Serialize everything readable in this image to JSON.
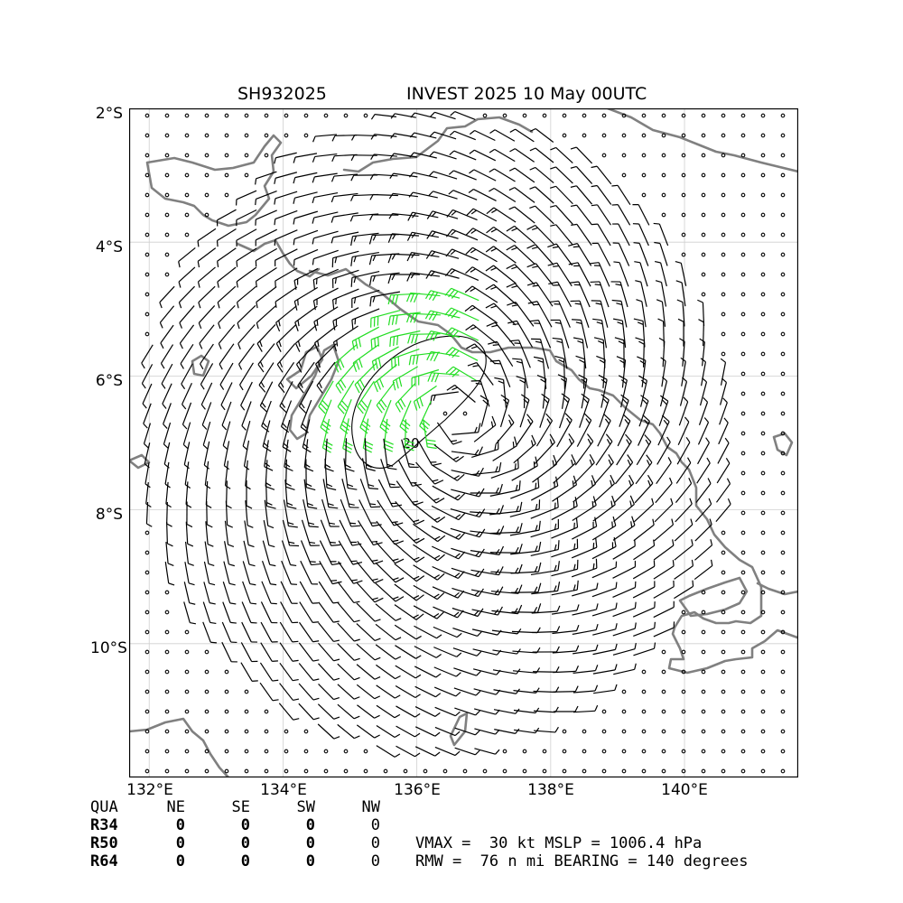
{
  "title": {
    "storm_id": "SH932025",
    "name_time": "INVEST 2025 10 May 00UTC"
  },
  "map": {
    "lon_range": [
      131.7,
      141.7
    ],
    "lat_range": [
      -12.0,
      -2.0
    ],
    "lat_ticks": [
      {
        "value": -2,
        "label": "2°S"
      },
      {
        "value": -4,
        "label": "4°S"
      },
      {
        "value": -6,
        "label": "6°S"
      },
      {
        "value": -8,
        "label": "8°S"
      },
      {
        "value": -10,
        "label": "10°S"
      }
    ],
    "lon_ticks": [
      {
        "value": 132,
        "label": "132°E"
      },
      {
        "value": 134,
        "label": "134°E"
      },
      {
        "value": 136,
        "label": "136°E"
      },
      {
        "value": 138,
        "label": "138°E"
      },
      {
        "value": 140,
        "label": "140°E"
      }
    ],
    "grid": true,
    "coastline_color": "#808080",
    "barb_color": "#000000",
    "strong_barb_color": "#22dd22",
    "center": {
      "lon": 136.6,
      "lat": -6.6
    },
    "contour_label": "20"
  },
  "radii": {
    "header": [
      "QUA",
      "NE",
      "SE",
      "SW",
      "NW"
    ],
    "rows": [
      {
        "label": "R34",
        "values": [
          "0",
          "0",
          "0",
          "0"
        ]
      },
      {
        "label": "R50",
        "values": [
          "0",
          "0",
          "0",
          "0"
        ]
      },
      {
        "label": "R64",
        "values": [
          "0",
          "0",
          "0",
          "0"
        ]
      }
    ]
  },
  "stats": {
    "line1": "VMAX =  30 kt MSLP = 1006.4 hPa",
    "line2": "RMW =  76 n mi BEARING = 140 degrees"
  }
}
